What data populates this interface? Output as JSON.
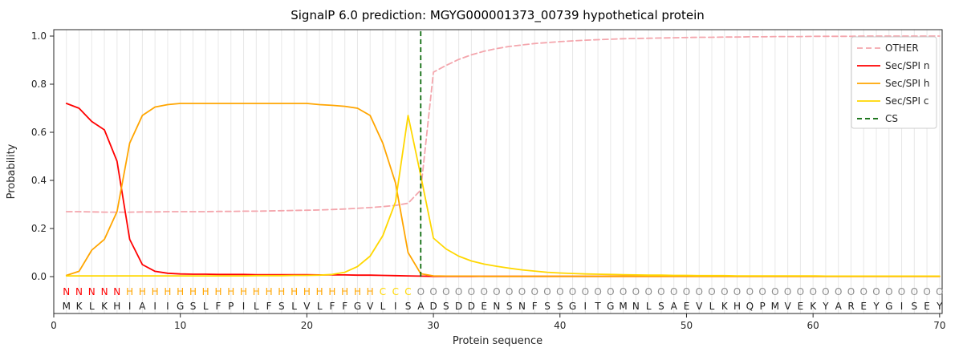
{
  "chart_data": {
    "type": "line",
    "title": "SignalP 6.0 prediction: MGYG000001373_00739 hypothetical protein",
    "xlabel": "Protein sequence",
    "ylabel": "Probability",
    "xlim": [
      0,
      70.2
    ],
    "ylim": [
      -0.15,
      1.03
    ],
    "x_range": [
      1,
      70
    ],
    "x_ticks": [
      0,
      10,
      20,
      30,
      40,
      50,
      60,
      70
    ],
    "y_ticks": [
      0.0,
      0.2,
      0.4,
      0.6,
      0.8,
      1.0
    ],
    "grid": "vertical-per-residue",
    "legend_position": "upper right",
    "colors": {
      "grid": "#e8e8e8",
      "frame": "#262626",
      "sequence_text": "#1a1a1a"
    },
    "series": [
      {
        "id": "other",
        "name": "OTHER",
        "color": "#f4a6ad",
        "dash": "7 4",
        "values": [
          0.27,
          0.27,
          0.269,
          0.268,
          0.268,
          0.268,
          0.269,
          0.269,
          0.27,
          0.27,
          0.27,
          0.27,
          0.271,
          0.271,
          0.272,
          0.272,
          0.273,
          0.274,
          0.275,
          0.276,
          0.277,
          0.279,
          0.281,
          0.284,
          0.287,
          0.291,
          0.296,
          0.305,
          0.36,
          0.85,
          0.878,
          0.903,
          0.922,
          0.937,
          0.948,
          0.957,
          0.963,
          0.969,
          0.973,
          0.977,
          0.98,
          0.983,
          0.985,
          0.987,
          0.989,
          0.99,
          0.991,
          0.992,
          0.993,
          0.994,
          0.995,
          0.995,
          0.996,
          0.996,
          0.997,
          0.997,
          0.998,
          0.998,
          0.998,
          0.999,
          0.999,
          0.999,
          0.999,
          1.0,
          1.0,
          1.0,
          1.0,
          1.0,
          1.0,
          1.0
        ]
      },
      {
        "id": "sec-spi-n",
        "name": "Sec/SPI n",
        "color": "#ff0000",
        "dash": null,
        "values": [
          0.72,
          0.7,
          0.645,
          0.61,
          0.48,
          0.155,
          0.05,
          0.022,
          0.014,
          0.011,
          0.01,
          0.01,
          0.009,
          0.009,
          0.009,
          0.008,
          0.008,
          0.008,
          0.008,
          0.008,
          0.007,
          0.007,
          0.007,
          0.006,
          0.006,
          0.005,
          0.004,
          0.003,
          0.002,
          0.001,
          0.001,
          0.001,
          0.001,
          0.001,
          0.001,
          0.001,
          0.001,
          0.001,
          0.001,
          0.001,
          0.001,
          0.001,
          0.001,
          0.001,
          0.001,
          0.001,
          0.001,
          0.001,
          0.001,
          0.001,
          0.001,
          0.001,
          0.001,
          0.001,
          0.001,
          0.001,
          0.001,
          0.001,
          0.001,
          0.001,
          0.001,
          0.001,
          0.001,
          0.001,
          0.001,
          0.001,
          0.001,
          0.001,
          0.001,
          0.001
        ]
      },
      {
        "id": "sec-spi-h",
        "name": "Sec/SPI h",
        "color": "#ffa500",
        "dash": null,
        "values": [
          0.005,
          0.022,
          0.11,
          0.155,
          0.27,
          0.555,
          0.67,
          0.705,
          0.715,
          0.72,
          0.72,
          0.72,
          0.72,
          0.72,
          0.72,
          0.72,
          0.72,
          0.72,
          0.72,
          0.72,
          0.715,
          0.712,
          0.708,
          0.7,
          0.67,
          0.555,
          0.39,
          0.1,
          0.012,
          0.003,
          0.002,
          0.002,
          0.002,
          0.001,
          0.001,
          0.001,
          0.001,
          0.001,
          0.001,
          0.001,
          0.001,
          0.001,
          0.001,
          0.001,
          0.001,
          0.001,
          0.001,
          0.001,
          0.001,
          0.001,
          0.001,
          0.001,
          0.001,
          0.001,
          0.001,
          0.001,
          0.001,
          0.001,
          0.001,
          0.001,
          0.001,
          0.001,
          0.001,
          0.001,
          0.001,
          0.001,
          0.001,
          0.001,
          0.001,
          0.001
        ]
      },
      {
        "id": "sec-spi-c",
        "name": "Sec/SPI c",
        "color": "#ffd700",
        "dash": null,
        "values": [
          0.003,
          0.003,
          0.003,
          0.003,
          0.003,
          0.003,
          0.003,
          0.003,
          0.003,
          0.003,
          0.003,
          0.003,
          0.003,
          0.003,
          0.003,
          0.004,
          0.004,
          0.004,
          0.005,
          0.005,
          0.006,
          0.009,
          0.018,
          0.042,
          0.085,
          0.17,
          0.31,
          0.67,
          0.42,
          0.16,
          0.115,
          0.085,
          0.065,
          0.052,
          0.043,
          0.035,
          0.028,
          0.023,
          0.018,
          0.015,
          0.013,
          0.011,
          0.01,
          0.009,
          0.008,
          0.007,
          0.006,
          0.006,
          0.005,
          0.005,
          0.004,
          0.004,
          0.004,
          0.003,
          0.003,
          0.003,
          0.003,
          0.003,
          0.003,
          0.003,
          0.002,
          0.002,
          0.002,
          0.002,
          0.002,
          0.002,
          0.002,
          0.002,
          0.002,
          0.002
        ]
      }
    ],
    "cs_line": {
      "name": "CS",
      "position": 29,
      "color": "#006400",
      "dash": "6 4"
    },
    "sequence": "MKLKHIAIIGSLFPILFSLVLFFGVLISADSDDENSNFSSGITGMNLSAEVLKHQPMVEKYAREYGISEY",
    "regions": "NNNNNHHHHHHHHHHHHHHHHHHHHCCCOOOOOOOOOOOOOOOOOOOOOOOOOOOOOOOOOOOOOOOOOO",
    "region_colors": {
      "N": "#ff0000",
      "H": "#ffa500",
      "C": "#ffd700",
      "O": "#8c8c8c"
    },
    "legend_labels": [
      "OTHER",
      "Sec/SPI n",
      "Sec/SPI h",
      "Sec/SPI c",
      "CS"
    ]
  }
}
